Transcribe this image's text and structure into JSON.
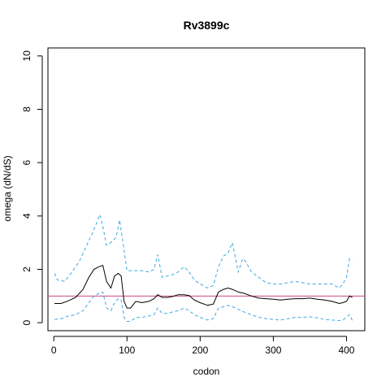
{
  "chart_data": {
    "type": "line",
    "title": "Rv3899c",
    "xlabel": "codon",
    "ylabel": "omega (dN/dS)",
    "xlim": [
      -8,
      425
    ],
    "ylim": [
      -0.3,
      10.3
    ],
    "xticks": [
      0,
      100,
      200,
      300,
      400
    ],
    "yticks": [
      0,
      2,
      4,
      6,
      8,
      10
    ],
    "grid": false,
    "reference_line": {
      "y": 1,
      "color": "#cc4488"
    },
    "series": [
      {
        "role": "estimate",
        "color": "#000000",
        "dash": "solid",
        "x": [
          1,
          10,
          20,
          30,
          40,
          48,
          55,
          62,
          67,
          72,
          78,
          83,
          88,
          92,
          96,
          100,
          105,
          112,
          120,
          130,
          137,
          142,
          148,
          155,
          162,
          170,
          178,
          185,
          192,
          200,
          210,
          218,
          225,
          232,
          238,
          244,
          252,
          260,
          270,
          280,
          290,
          300,
          310,
          320,
          330,
          340,
          350,
          360,
          370,
          380,
          390,
          395,
          400,
          404,
          408
        ],
        "values": [
          0.72,
          0.72,
          0.82,
          0.95,
          1.25,
          1.7,
          2.0,
          2.1,
          2.15,
          1.55,
          1.3,
          1.75,
          1.85,
          1.75,
          0.8,
          0.55,
          0.55,
          0.8,
          0.75,
          0.8,
          0.9,
          1.05,
          0.95,
          0.95,
          0.98,
          1.05,
          1.05,
          1.02,
          0.85,
          0.75,
          0.65,
          0.7,
          1.15,
          1.25,
          1.3,
          1.25,
          1.15,
          1.1,
          1.0,
          0.92,
          0.9,
          0.88,
          0.85,
          0.88,
          0.9,
          0.9,
          0.92,
          0.88,
          0.85,
          0.8,
          0.72,
          0.75,
          0.8,
          1.0,
          0.95
        ]
      },
      {
        "role": "upper",
        "color": "#3fa9e0",
        "dash": "dashed",
        "x": [
          1,
          5,
          15,
          25,
          35,
          45,
          52,
          58,
          63,
          67,
          72,
          80,
          85,
          90,
          95,
          100,
          105,
          112,
          120,
          130,
          137,
          142,
          148,
          155,
          162,
          170,
          178,
          185,
          192,
          200,
          210,
          218,
          225,
          232,
          238,
          244,
          252,
          258,
          262,
          270,
          280,
          290,
          300,
          310,
          320,
          330,
          340,
          350,
          360,
          370,
          380,
          390,
          395,
          400,
          404,
          408
        ],
        "values": [
          1.85,
          1.6,
          1.55,
          1.9,
          2.3,
          2.9,
          3.3,
          3.7,
          4.05,
          3.6,
          2.9,
          3.05,
          3.2,
          3.85,
          2.9,
          1.95,
          1.95,
          1.95,
          1.95,
          1.9,
          2.0,
          2.55,
          1.7,
          1.75,
          1.8,
          1.9,
          2.1,
          1.9,
          1.6,
          1.45,
          1.3,
          1.4,
          2.1,
          2.5,
          2.6,
          3.0,
          1.9,
          2.4,
          2.3,
          1.9,
          1.7,
          1.5,
          1.45,
          1.45,
          1.5,
          1.55,
          1.5,
          1.45,
          1.45,
          1.45,
          1.45,
          1.3,
          1.45,
          1.7,
          2.4,
          2.35
        ]
      },
      {
        "role": "lower",
        "color": "#3fa9e0",
        "dash": "dashed",
        "x": [
          1,
          10,
          20,
          30,
          40,
          48,
          55,
          62,
          67,
          72,
          78,
          83,
          88,
          92,
          96,
          100,
          105,
          112,
          120,
          130,
          137,
          142,
          148,
          155,
          162,
          170,
          178,
          185,
          192,
          200,
          210,
          218,
          225,
          232,
          238,
          244,
          252,
          260,
          270,
          280,
          290,
          300,
          310,
          320,
          330,
          340,
          350,
          360,
          370,
          380,
          390,
          395,
          400,
          404,
          408
        ],
        "values": [
          0.12,
          0.15,
          0.25,
          0.3,
          0.45,
          0.75,
          1.0,
          1.1,
          1.15,
          0.55,
          0.45,
          0.75,
          0.9,
          0.85,
          0.2,
          0.05,
          0.05,
          0.2,
          0.2,
          0.25,
          0.3,
          0.55,
          0.35,
          0.35,
          0.4,
          0.45,
          0.55,
          0.45,
          0.3,
          0.2,
          0.1,
          0.15,
          0.55,
          0.6,
          0.65,
          0.6,
          0.5,
          0.4,
          0.3,
          0.2,
          0.15,
          0.12,
          0.1,
          0.15,
          0.2,
          0.2,
          0.22,
          0.18,
          0.12,
          0.1,
          0.08,
          0.1,
          0.2,
          0.3,
          0.08
        ]
      }
    ]
  }
}
